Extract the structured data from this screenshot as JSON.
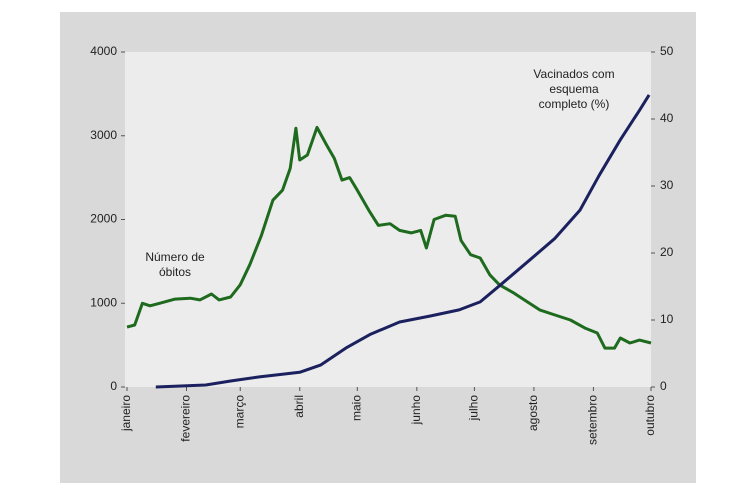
{
  "chart_data": {
    "type": "line",
    "xlim": [
      0,
      273
    ],
    "xticks": [
      {
        "value": 0,
        "label": "janeiro"
      },
      {
        "value": 31,
        "label": "fevereiro"
      },
      {
        "value": 59,
        "label": "março"
      },
      {
        "value": 90,
        "label": "abril"
      },
      {
        "value": 120,
        "label": "maio"
      },
      {
        "value": 151,
        "label": "junho"
      },
      {
        "value": 181,
        "label": "julho"
      },
      {
        "value": 212,
        "label": "agosto"
      },
      {
        "value": 243,
        "label": "setembro"
      },
      {
        "value": 273,
        "label": "outubro"
      }
    ],
    "ylim": [
      0,
      4000
    ],
    "yticks": [
      0,
      1000,
      2000,
      3000,
      4000
    ],
    "y2lim": [
      0,
      50
    ],
    "y2ticks": [
      0,
      10,
      20,
      30,
      40,
      50
    ],
    "series": [
      {
        "color": "#1e6a1e",
        "x": [
          0,
          4,
          8,
          12,
          17,
          25,
          33,
          38,
          44,
          48,
          54,
          59,
          64,
          70,
          76,
          81,
          85,
          88,
          90,
          94,
          99,
          104,
          108,
          112,
          116,
          120,
          126,
          131,
          137,
          142,
          148,
          153,
          156,
          160,
          166,
          171,
          174,
          179,
          184,
          189,
          194,
          201,
          207,
          215,
          223,
          231,
          239,
          245,
          249,
          254,
          257,
          262,
          267,
          273
        ],
        "values": [
          715,
          740,
          1000,
          970,
          1000,
          1050,
          1060,
          1040,
          1110,
          1040,
          1075,
          1220,
          1460,
          1810,
          2230,
          2350,
          2610,
          3090,
          2710,
          2770,
          3100,
          2890,
          2730,
          2470,
          2500,
          2350,
          2110,
          1930,
          1950,
          1870,
          1840,
          1870,
          1660,
          2000,
          2050,
          2040,
          1750,
          1580,
          1540,
          1340,
          1220,
          1130,
          1040,
          920,
          860,
          800,
          700,
          645,
          465,
          465,
          585,
          525,
          560,
          525
        ]
      },
      {
        "color": "#1b215e",
        "axis": "y2",
        "x": [
          15,
          41,
          54,
          69,
          90,
          101,
          114,
          127,
          142,
          158,
          173,
          184,
          194,
          210,
          223,
          236,
          246,
          257,
          267,
          272
        ],
        "values": [
          0,
          0.3,
          0.9,
          1.5,
          2.2,
          3.3,
          5.8,
          7.9,
          9.7,
          10.6,
          11.5,
          12.7,
          15.1,
          19,
          22.2,
          26.4,
          31.6,
          36.9,
          41.3,
          43.6
        ]
      }
    ],
    "annotations": [
      {
        "lines": [
          "Número de",
          "óbitos"
        ]
      },
      {
        "lines": [
          "Vacinados com",
          "esquema",
          "completo  (%)"
        ]
      }
    ]
  }
}
